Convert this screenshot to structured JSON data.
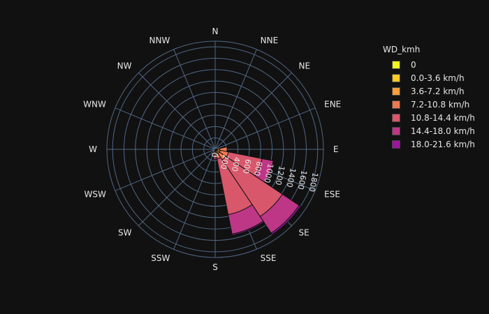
{
  "chart_data": {
    "type": "barpolar",
    "legend_title": "WD_kmh",
    "directions": [
      "N",
      "NNE",
      "NE",
      "ENE",
      "E",
      "ESE",
      "SE",
      "SSE",
      "S",
      "SSW",
      "SW",
      "WSW",
      "W",
      "WNW",
      "NW",
      "NNW"
    ],
    "radial_ticks": [
      "0",
      "200",
      "400",
      "600",
      "800",
      "1000",
      "1200",
      "1400",
      "1600",
      "1800"
    ],
    "radial_range": [
      0,
      1900
    ],
    "series": [
      {
        "name": "0",
        "color": "#f0f921",
        "values": [
          0,
          0,
          0,
          0,
          0,
          0,
          0,
          0,
          0,
          0,
          0,
          0,
          0,
          0,
          0,
          0
        ]
      },
      {
        "name": "0.0-3.6 km/h",
        "color": "#fdca26",
        "values": [
          0,
          0,
          0,
          0,
          20,
          20,
          30,
          30,
          10,
          0,
          0,
          0,
          0,
          0,
          0,
          0
        ]
      },
      {
        "name": "3.6-7.2 km/h",
        "color": "#fb9f3a",
        "values": [
          0,
          0,
          0,
          0,
          60,
          70,
          60,
          40,
          20,
          0,
          0,
          0,
          0,
          0,
          0,
          0
        ]
      },
      {
        "name": "7.2-10.8 km/h",
        "color": "#ed7953",
        "values": [
          0,
          0,
          0,
          0,
          130,
          150,
          130,
          100,
          60,
          0,
          0,
          0,
          0,
          0,
          0,
          0
        ]
      },
      {
        "name": "10.8-14.4 km/h",
        "color": "#d8576b",
        "values": [
          0,
          0,
          0,
          0,
          0,
          600,
          1200,
          1000,
          60,
          0,
          0,
          0,
          0,
          0,
          0,
          0
        ]
      },
      {
        "name": "14.4-18.0 km/h",
        "color": "#bd3786",
        "values": [
          0,
          0,
          0,
          0,
          0,
          200,
          350,
          350,
          30,
          0,
          0,
          0,
          0,
          0,
          0,
          0
        ]
      },
      {
        "name": "18.0-21.6 km/h",
        "color": "#9c179e",
        "values": [
          0,
          0,
          0,
          0,
          0,
          0,
          30,
          20,
          0,
          0,
          0,
          0,
          0,
          0,
          0,
          0
        ]
      }
    ]
  }
}
